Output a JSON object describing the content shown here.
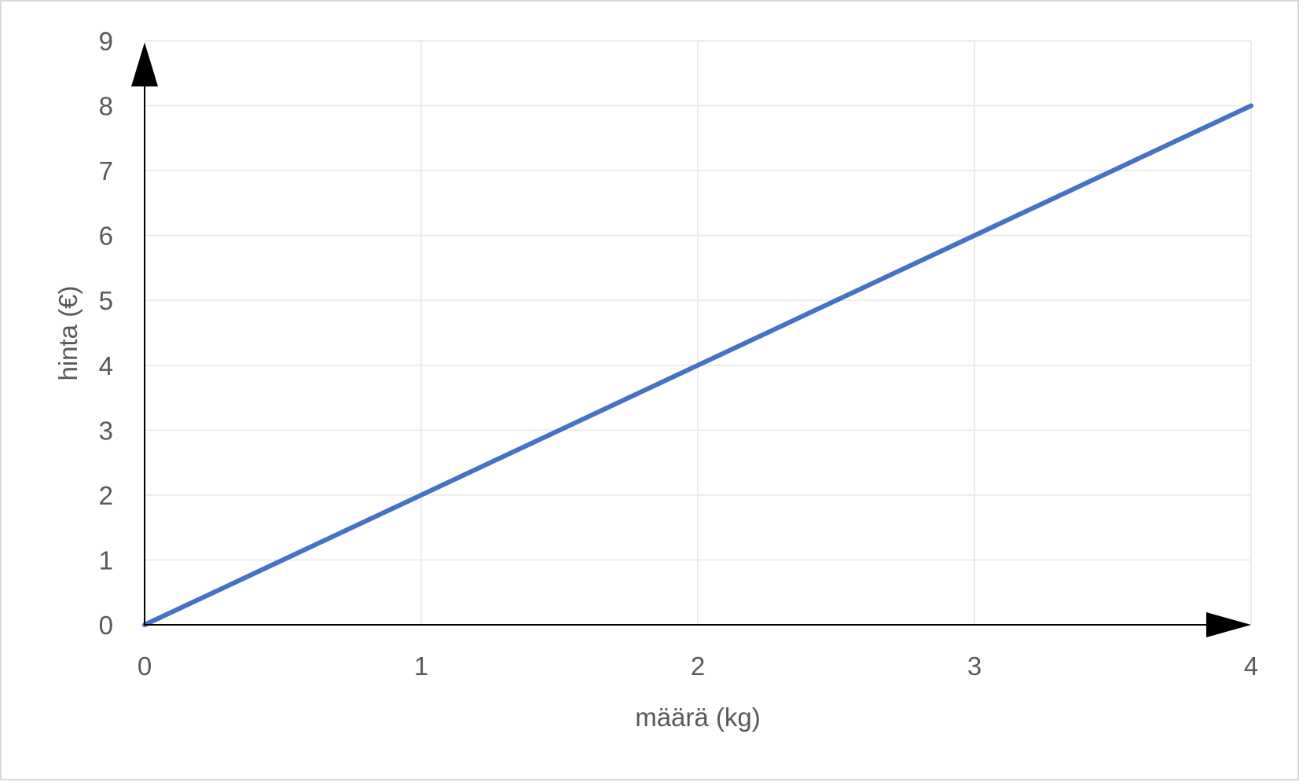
{
  "chart_data": {
    "type": "line",
    "title": "",
    "xlabel": "määrä (kg)",
    "ylabel": "hinta (€)",
    "xlim": [
      0,
      4
    ],
    "ylim": [
      0,
      9
    ],
    "x_ticks": [
      "0",
      "1",
      "2",
      "3",
      "4"
    ],
    "y_ticks": [
      "0",
      "1",
      "2",
      "3",
      "4",
      "5",
      "6",
      "7",
      "8",
      "9"
    ],
    "grid": true,
    "legend": "none",
    "series": [
      {
        "x": [
          0,
          4
        ],
        "y": [
          0,
          8
        ],
        "color": "#4472c4"
      }
    ],
    "axis_color": "#000000",
    "grid_color": "#ececec"
  }
}
